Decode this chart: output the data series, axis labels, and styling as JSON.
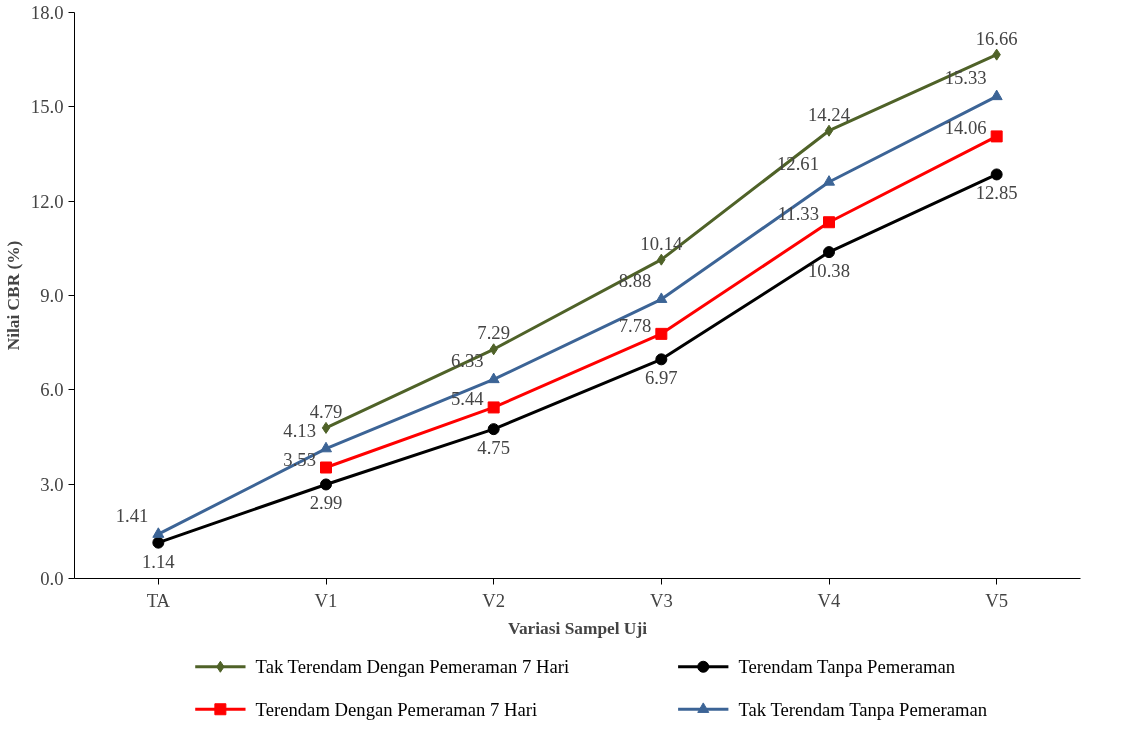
{
  "chart_data": {
    "type": "line",
    "xlabel": "Variasi Sampel Uji",
    "ylabel": "Nilai CBR (%)",
    "categories": [
      "TA",
      "V1",
      "V2",
      "V3",
      "V4",
      "V5"
    ],
    "ylim": [
      0,
      18
    ],
    "yticks": [
      {
        "value": 0,
        "label": "0.0"
      },
      {
        "value": 3,
        "label": "3.0"
      },
      {
        "value": 6,
        "label": "6.0"
      },
      {
        "value": 9,
        "label": "9.0"
      },
      {
        "value": 12,
        "label": "12.0"
      },
      {
        "value": 15,
        "label": "15.0"
      },
      {
        "value": 18,
        "label": "18.0"
      }
    ],
    "grid": false,
    "legend": "bottom",
    "data_labels": true,
    "line_style": "solid",
    "series": [
      {
        "name": "Tak Terendam Dengan Pemeraman 7 Hari",
        "color": "#4f6228",
        "marker": "diamond",
        "values": [
          null,
          4.79,
          7.29,
          10.14,
          14.24,
          16.66
        ]
      },
      {
        "name": "Terendam Tanpa Pemeraman",
        "color": "#000000",
        "marker": "circle",
        "values": [
          1.14,
          2.99,
          4.75,
          6.97,
          10.38,
          12.85
        ]
      },
      {
        "name": "Terendam Dengan Pemeraman 7 Hari",
        "color": "#ff0000",
        "marker": "square",
        "values": [
          null,
          3.53,
          5.44,
          7.78,
          11.33,
          14.06
        ]
      },
      {
        "name": "Tak Terendam Tanpa Pemeraman",
        "color": "#3c6496",
        "marker": "triangle",
        "values": [
          1.41,
          4.13,
          6.33,
          8.88,
          12.61,
          15.33
        ]
      }
    ]
  }
}
